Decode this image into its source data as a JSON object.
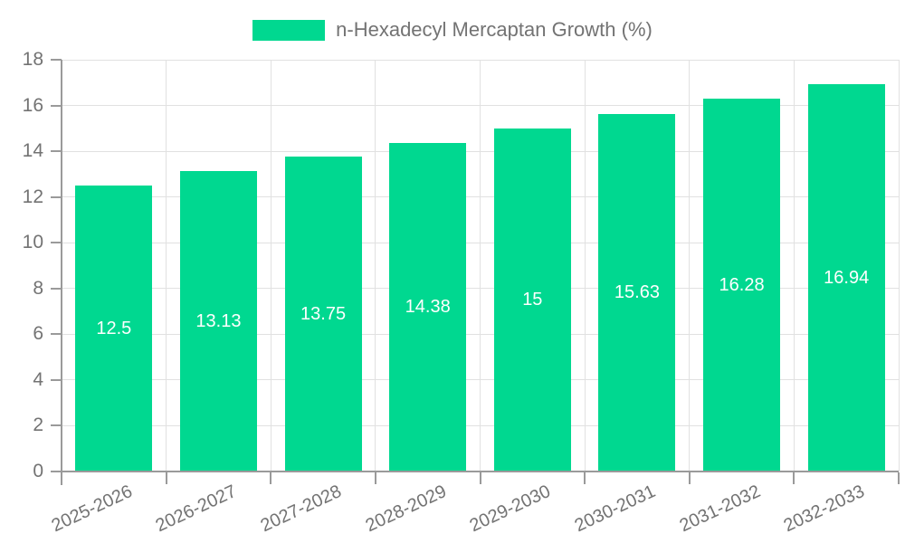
{
  "legend": {
    "series_label": "n-Hexadecyl Mercaptan Growth (%)"
  },
  "chart_data": {
    "type": "bar",
    "title": "n-Hexadecyl Mercaptan Growth (%)",
    "xlabel": "",
    "ylabel": "",
    "categories": [
      "2025-2026",
      "2026-2027",
      "2027-2028",
      "2028-2029",
      "2029-2030",
      "2030-2031",
      "2031-2032",
      "2032-2033"
    ],
    "values": [
      12.5,
      13.13,
      13.75,
      14.38,
      15,
      15.63,
      16.28,
      16.94
    ],
    "value_labels": [
      "12.5",
      "13.13",
      "13.75",
      "14.38",
      "15",
      "15.63",
      "16.28",
      "16.94"
    ],
    "ylim": [
      0,
      18
    ],
    "y_ticks": [
      0,
      2,
      4,
      6,
      8,
      10,
      12,
      14,
      16,
      18
    ],
    "grid": true,
    "legend_position": "top",
    "x_label_rotation_deg": -25,
    "colors": {
      "bar": "#00d890",
      "value_label": "#ffffff",
      "axis": "#9a9a9a",
      "grid": "#e1e1e1",
      "text": "#737373",
      "background": "#ffffff"
    }
  }
}
